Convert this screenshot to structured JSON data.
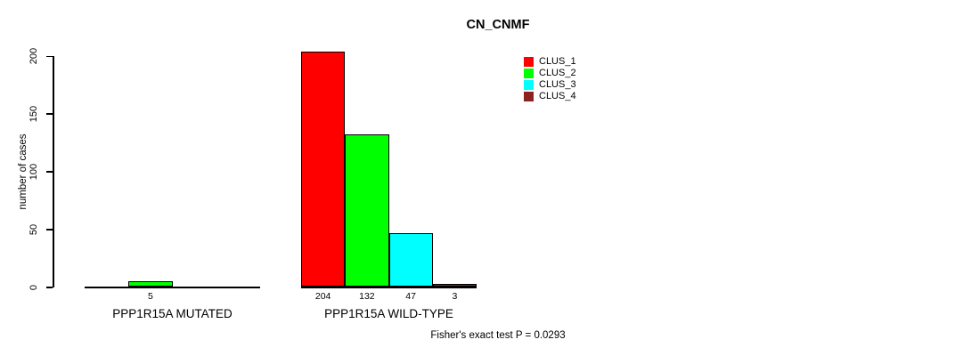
{
  "chart_data": {
    "type": "bar",
    "title": "CN_CNMF",
    "ylabel": "number of cases",
    "xlabel": "",
    "ylim": [
      0,
      200
    ],
    "yticks": [
      0,
      50,
      100,
      150,
      200
    ],
    "grid": false,
    "categories": [
      "PPP1R15A MUTATED",
      "PPP1R15A WILD-TYPE"
    ],
    "series": [
      {
        "name": "CLUS_1",
        "color": "#ff0000",
        "values": [
          0,
          204
        ]
      },
      {
        "name": "CLUS_2",
        "color": "#00ff00",
        "values": [
          5,
          132
        ]
      },
      {
        "name": "CLUS_3",
        "color": "#00ffff",
        "values": [
          0,
          47
        ]
      },
      {
        "name": "CLUS_4",
        "color": "#8b2323",
        "values": [
          0,
          3
        ]
      }
    ],
    "bar_labels": [
      [
        "",
        "5",
        "",
        ""
      ],
      [
        "204",
        "132",
        "47",
        "3"
      ]
    ],
    "legend": {
      "position": "top-right-inside",
      "entries": [
        "CLUS_1",
        "CLUS_2",
        "CLUS_3",
        "CLUS_4"
      ]
    },
    "footnote": "Fisher's exact test P = 0.0293"
  }
}
